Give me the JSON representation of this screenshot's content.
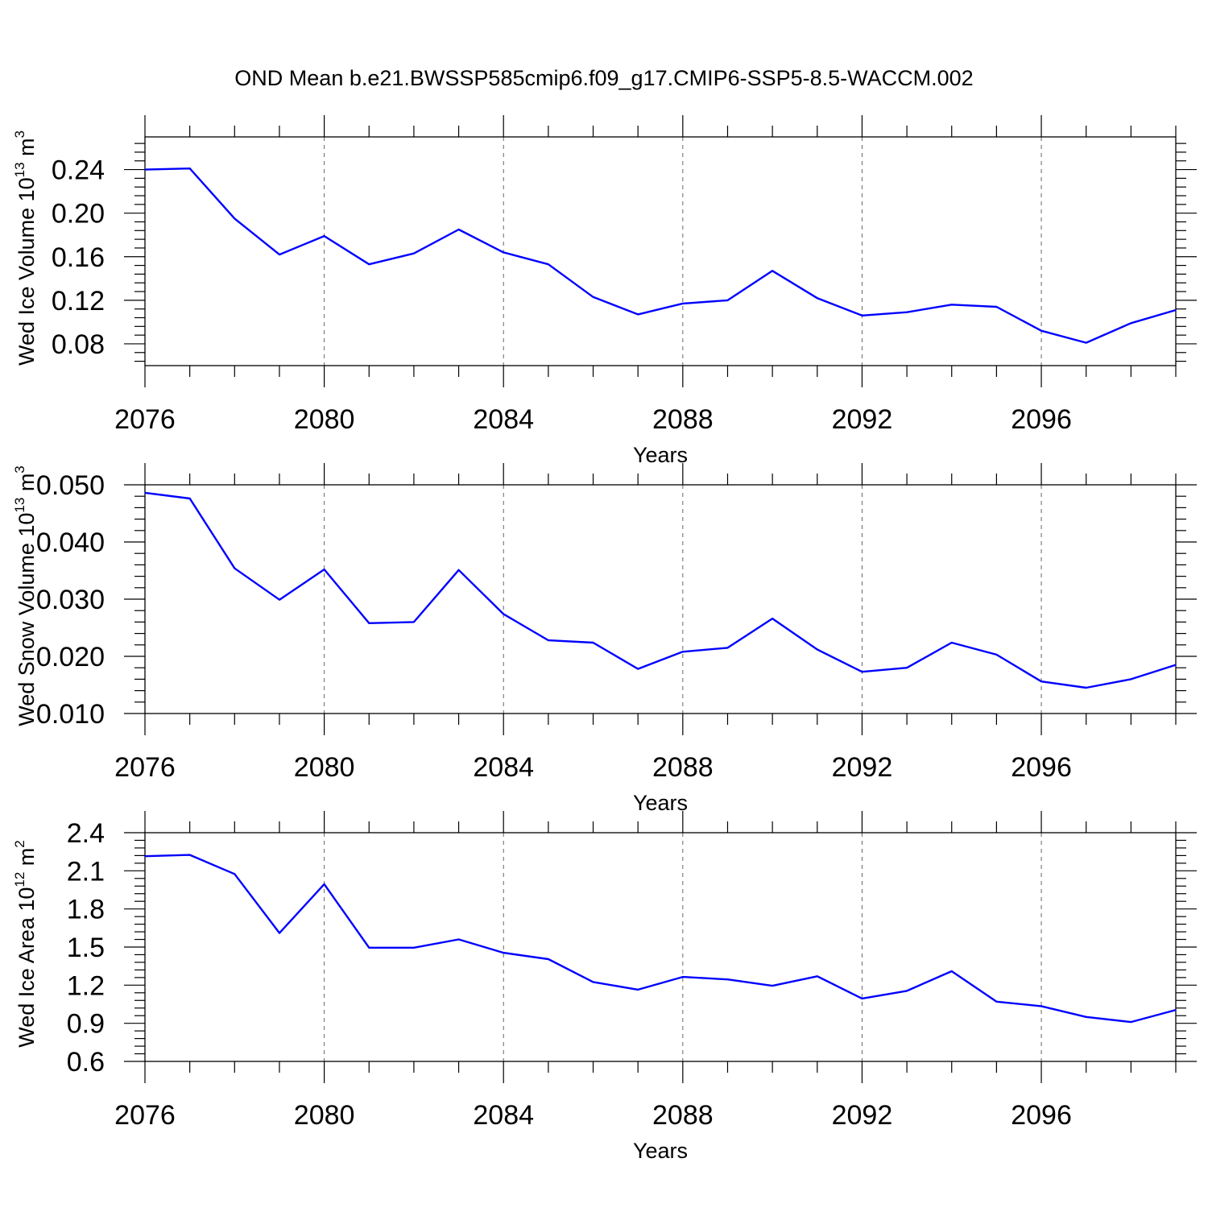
{
  "title": "OND Mean b.e21.BWSSP585cmip6.f09_g17.CMIP6-SSP5-8.5-WACCM.002",
  "line_color": "#0000ff",
  "chart_data": [
    {
      "type": "line",
      "ylabel": "Wed Ice Volume 10",
      "ylabel_exp": "13",
      "ylabel_unit": " m",
      "ylabel_unit_exp": "3",
      "xlabel": "Years",
      "xlim": [
        2076,
        2099
      ],
      "ylim": [
        0.06,
        0.27
      ],
      "xticks": [
        2076,
        2080,
        2084,
        2088,
        2092,
        2096
      ],
      "xtick_labels": [
        "2076",
        "2080",
        "2084",
        "2088",
        "2092",
        "2096"
      ],
      "yticks": [
        0.08,
        0.12,
        0.16,
        0.2,
        0.24
      ],
      "ytick_labels": [
        "0.08",
        "0.12",
        "0.16",
        "0.20",
        "0.24"
      ],
      "x": [
        2076,
        2077,
        2078,
        2079,
        2080,
        2081,
        2082,
        2083,
        2084,
        2085,
        2086,
        2087,
        2088,
        2089,
        2090,
        2091,
        2092,
        2093,
        2094,
        2095,
        2096,
        2097,
        2098,
        2099
      ],
      "values": [
        0.24,
        0.241,
        0.195,
        0.162,
        0.179,
        0.153,
        0.163,
        0.185,
        0.164,
        0.153,
        0.123,
        0.107,
        0.117,
        0.12,
        0.147,
        0.122,
        0.106,
        0.109,
        0.116,
        0.114,
        0.092,
        0.081,
        0.099,
        0.111
      ]
    },
    {
      "type": "line",
      "ylabel": "Wed Snow Volume 10",
      "ylabel_exp": "13",
      "ylabel_unit": " m",
      "ylabel_unit_exp": "3",
      "xlabel": "Years",
      "xlim": [
        2076,
        2099
      ],
      "ylim": [
        0.01,
        0.05
      ],
      "xticks": [
        2076,
        2080,
        2084,
        2088,
        2092,
        2096
      ],
      "xtick_labels": [
        "2076",
        "2080",
        "2084",
        "2088",
        "2092",
        "2096"
      ],
      "yticks": [
        0.01,
        0.02,
        0.03,
        0.04,
        0.05
      ],
      "ytick_labels": [
        "0.010",
        "0.020",
        "0.030",
        "0.040",
        "0.050"
      ],
      "x": [
        2076,
        2077,
        2078,
        2079,
        2080,
        2081,
        2082,
        2083,
        2084,
        2085,
        2086,
        2087,
        2088,
        2089,
        2090,
        2091,
        2092,
        2093,
        2094,
        2095,
        2096,
        2097,
        2098,
        2099
      ],
      "values": [
        0.0486,
        0.0476,
        0.0354,
        0.0299,
        0.0352,
        0.0258,
        0.026,
        0.0351,
        0.0274,
        0.0228,
        0.0224,
        0.0178,
        0.0208,
        0.0215,
        0.0266,
        0.0212,
        0.0173,
        0.018,
        0.0224,
        0.0203,
        0.0156,
        0.0145,
        0.016,
        0.0185
      ]
    },
    {
      "type": "line",
      "ylabel": "Wed Ice Area 10",
      "ylabel_exp": "12",
      "ylabel_unit": " m",
      "ylabel_unit_exp": "2",
      "xlabel": "Years",
      "xlim": [
        2076,
        2099
      ],
      "ylim": [
        0.6,
        2.4
      ],
      "xticks": [
        2076,
        2080,
        2084,
        2088,
        2092,
        2096
      ],
      "xtick_labels": [
        "2076",
        "2080",
        "2084",
        "2088",
        "2092",
        "2096"
      ],
      "yticks": [
        0.6,
        0.9,
        1.2,
        1.5,
        1.8,
        2.1,
        2.4
      ],
      "ytick_labels": [
        "0.6",
        "0.9",
        "1.2",
        "1.5",
        "1.8",
        "2.1",
        "2.4"
      ],
      "x": [
        2076,
        2077,
        2078,
        2079,
        2080,
        2081,
        2082,
        2083,
        2084,
        2085,
        2086,
        2087,
        2088,
        2089,
        2090,
        2091,
        2092,
        2093,
        2094,
        2095,
        2096,
        2097,
        2098,
        2099
      ],
      "values": [
        2.215,
        2.225,
        2.075,
        1.61,
        1.995,
        1.495,
        1.495,
        1.56,
        1.455,
        1.405,
        1.225,
        1.165,
        1.265,
        1.245,
        1.195,
        1.27,
        1.095,
        1.155,
        1.31,
        1.07,
        1.035,
        0.95,
        0.91,
        1.005
      ]
    }
  ]
}
